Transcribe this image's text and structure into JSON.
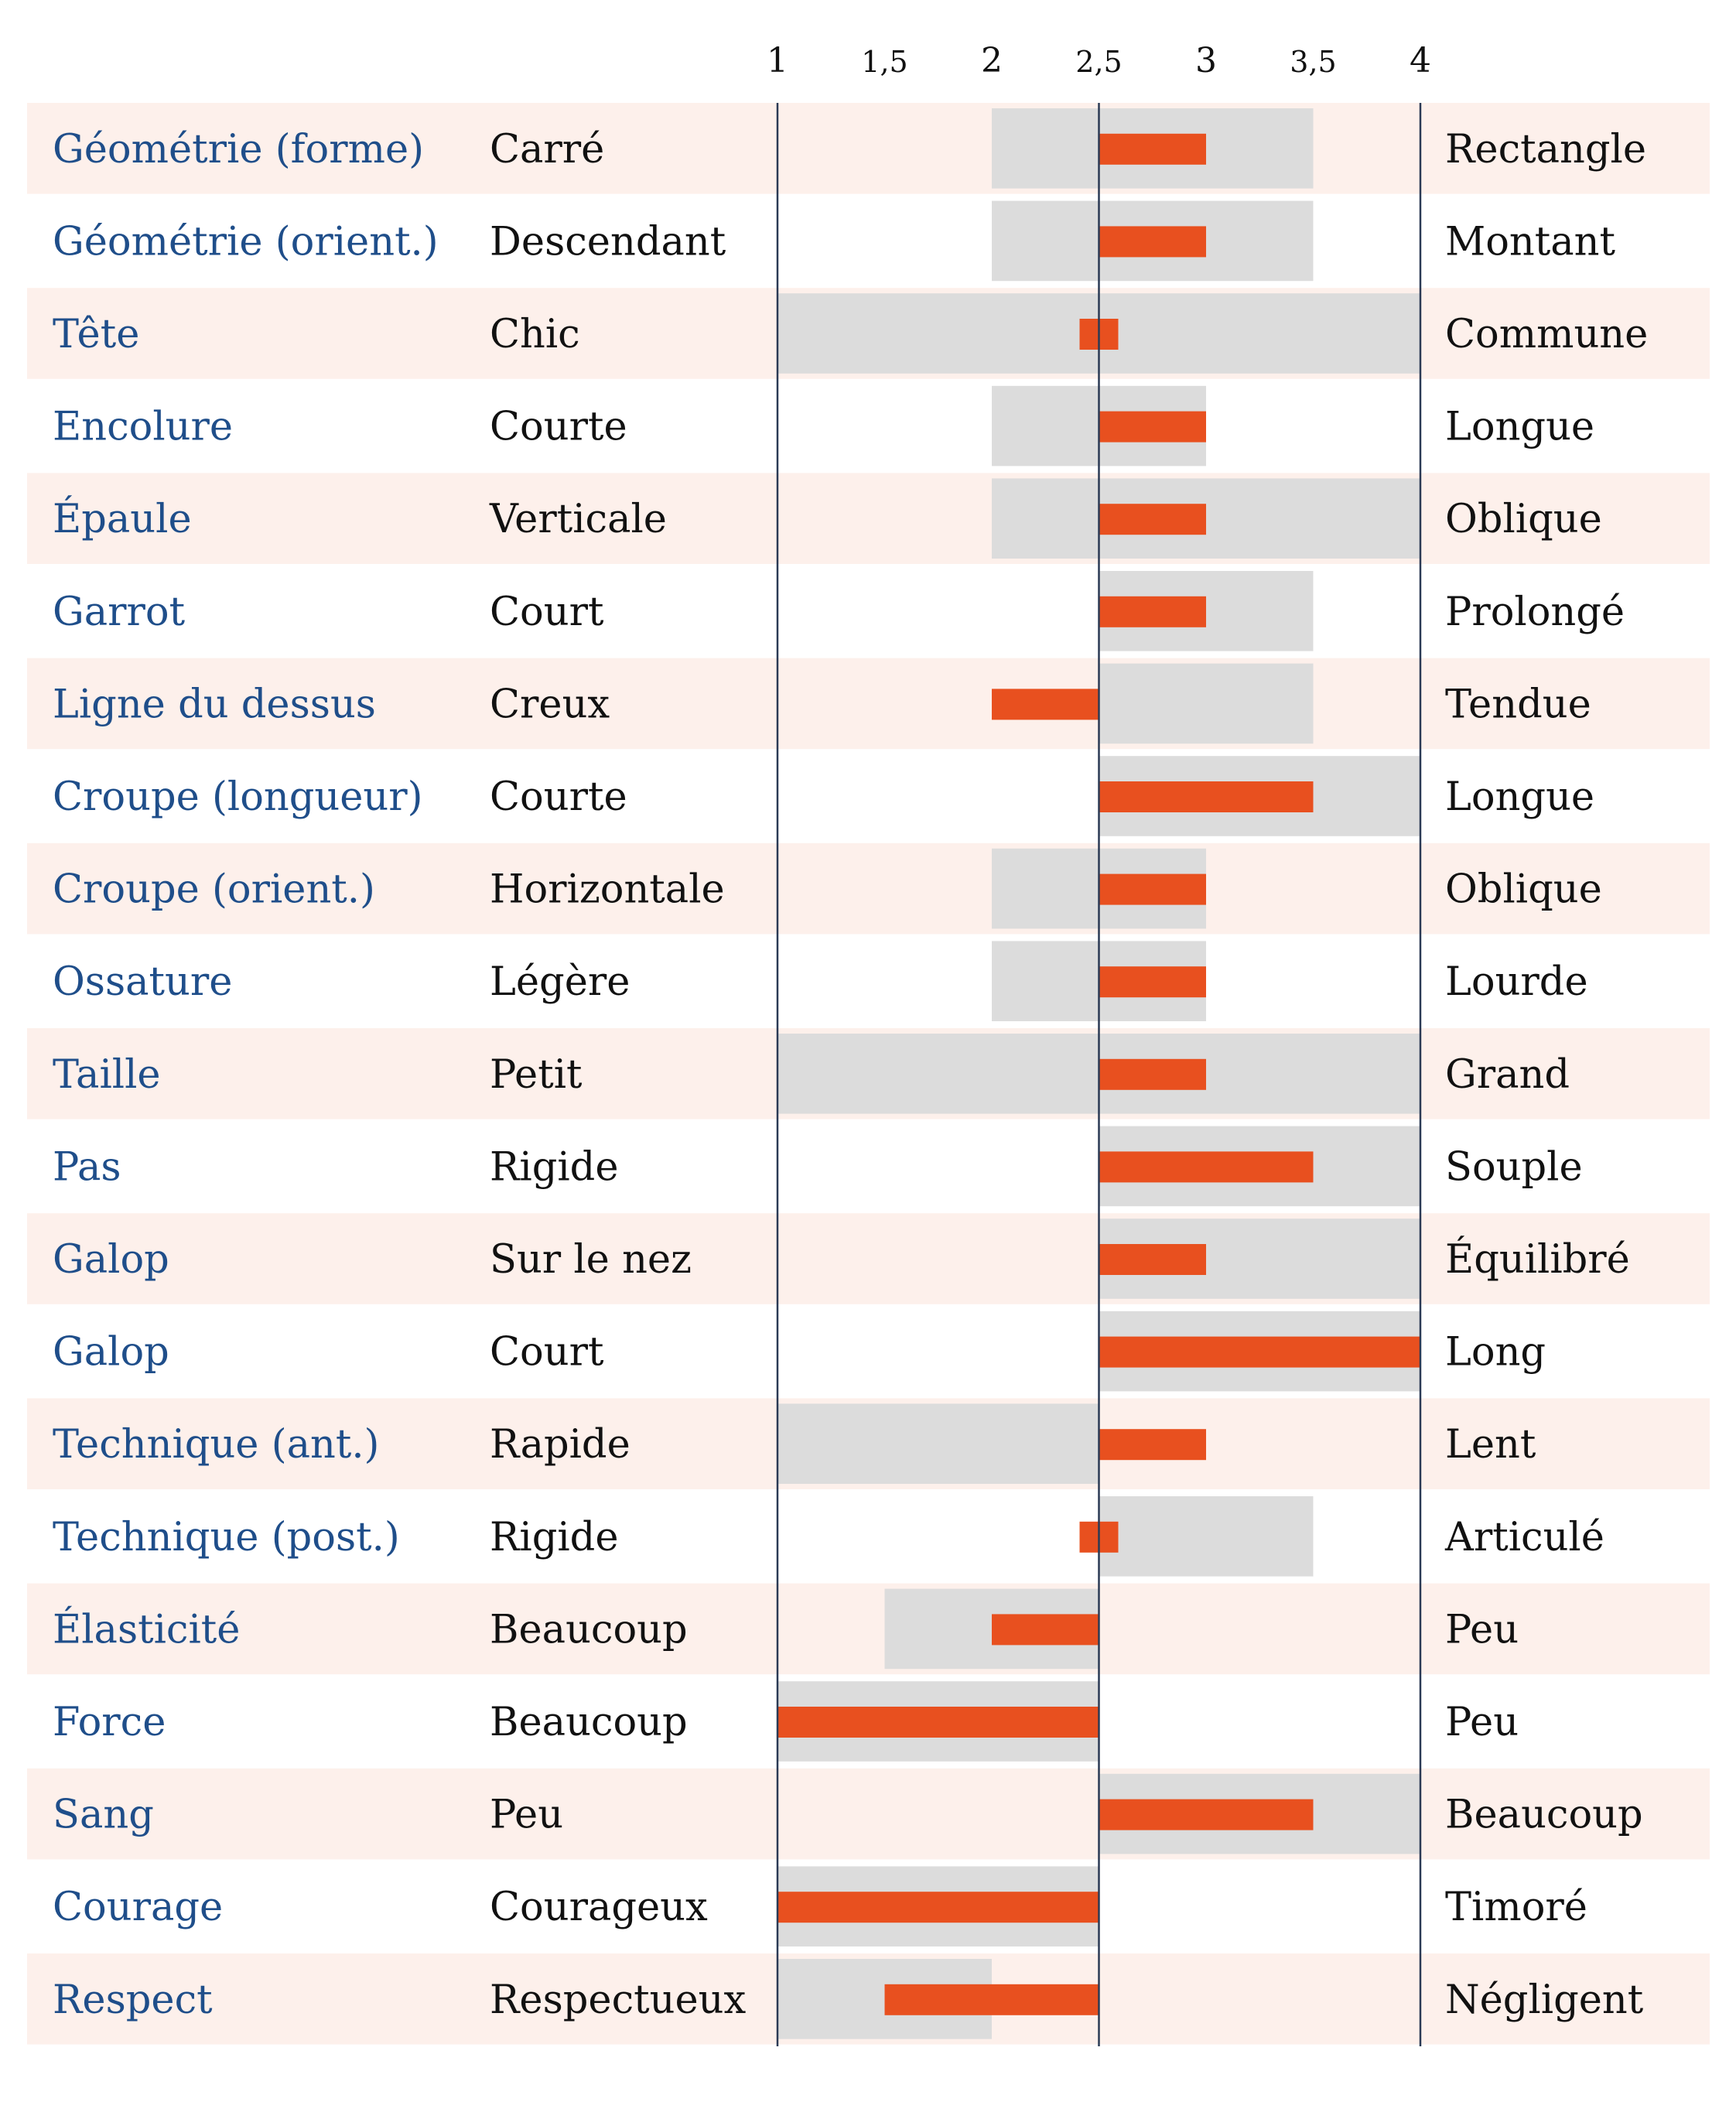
{
  "chart_data": {
    "type": "bar",
    "xlim": [
      1,
      4
    ],
    "baseline": 2.5,
    "ticks": [
      {
        "value": 1,
        "label": "1",
        "major": true
      },
      {
        "value": 1.5,
        "label": "1,5",
        "major": false
      },
      {
        "value": 2,
        "label": "2",
        "major": true
      },
      {
        "value": 2.5,
        "label": "2,5",
        "major": false
      },
      {
        "value": 3,
        "label": "3",
        "major": true
      },
      {
        "value": 3.5,
        "label": "3,5",
        "major": false
      },
      {
        "value": 4,
        "label": "4",
        "major": true
      }
    ],
    "colors": {
      "bar": "#e8501f",
      "range": "#dcdcdc",
      "row_band": "#fdf0eb",
      "trait_text": "#1f4e8a",
      "axis_line": "#2b3a55"
    },
    "rows": [
      {
        "trait": "Géométrie (forme)",
        "left": "Carré",
        "right": "Rectangle",
        "value": 3,
        "range": [
          2,
          3.5
        ]
      },
      {
        "trait": "Géométrie (orient.)",
        "left": "Descendant",
        "right": "Montant",
        "value": 3,
        "range": [
          2,
          3.5
        ]
      },
      {
        "trait": "Tête",
        "left": "Chic",
        "right": "Commune",
        "value": 2.5,
        "range": [
          1,
          4
        ]
      },
      {
        "trait": "Encolure",
        "left": "Courte",
        "right": "Longue",
        "value": 3,
        "range": [
          2,
          3
        ]
      },
      {
        "trait": "Épaule",
        "left": "Verticale",
        "right": "Oblique",
        "value": 3,
        "range": [
          2,
          4
        ]
      },
      {
        "trait": "Garrot",
        "left": "Court",
        "right": "Prolongé",
        "value": 3,
        "range": [
          2.5,
          3.5
        ]
      },
      {
        "trait": "Ligne du dessus",
        "left": "Creux",
        "right": "Tendue",
        "value": 2,
        "range": [
          2.5,
          3.5
        ]
      },
      {
        "trait": "Croupe (longueur)",
        "left": "Courte",
        "right": "Longue",
        "value": 3.5,
        "range": [
          2.5,
          4
        ]
      },
      {
        "trait": "Croupe (orient.)",
        "left": "Horizontale",
        "right": "Oblique",
        "value": 3,
        "range": [
          2,
          3
        ]
      },
      {
        "trait": "Ossature",
        "left": "Légère",
        "right": "Lourde",
        "value": 3,
        "range": [
          2,
          3
        ]
      },
      {
        "trait": "Taille",
        "left": "Petit",
        "right": "Grand",
        "value": 3,
        "range": [
          1,
          4
        ]
      },
      {
        "trait": "Pas",
        "left": "Rigide",
        "right": "Souple",
        "value": 3.5,
        "range": [
          2.5,
          4
        ]
      },
      {
        "trait": "Galop",
        "left": "Sur le nez",
        "right": "Équilibré",
        "value": 3,
        "range": [
          2.5,
          4
        ]
      },
      {
        "trait": "Galop",
        "left": "Court",
        "right": "Long",
        "value": 4,
        "range": [
          2.5,
          4
        ]
      },
      {
        "trait": "Technique (ant.)",
        "left": "Rapide",
        "right": "Lent",
        "value": 3,
        "range": [
          1,
          2.5
        ]
      },
      {
        "trait": "Technique (post.)",
        "left": "Rigide",
        "right": "Articulé",
        "value": 2.5,
        "range": [
          2.5,
          3.5
        ]
      },
      {
        "trait": "Élasticité",
        "left": "Beaucoup",
        "right": "Peu",
        "value": 2,
        "range": [
          1.5,
          2.5
        ]
      },
      {
        "trait": "Force",
        "left": "Beaucoup",
        "right": "Peu",
        "value": 1,
        "range": [
          1,
          2.5
        ]
      },
      {
        "trait": "Sang",
        "left": "Peu",
        "right": "Beaucoup",
        "value": 3.5,
        "range": [
          2.5,
          4
        ]
      },
      {
        "trait": "Courage",
        "left": "Courageux",
        "right": "Timoré",
        "value": 1,
        "range": [
          1,
          2.5
        ]
      },
      {
        "trait": "Respect",
        "left": "Respectueux",
        "right": "Négligent",
        "value": 1.5,
        "range": [
          1,
          2
        ]
      }
    ]
  }
}
